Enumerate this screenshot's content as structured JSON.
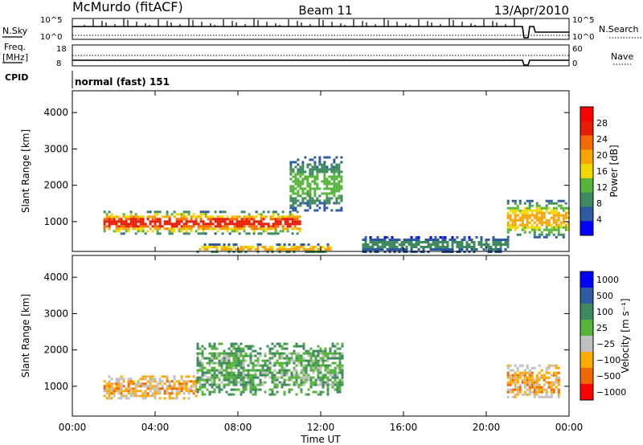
{
  "header": {
    "station": "McMurdo (fitACF)",
    "beam": "Beam 11",
    "date": "13/Apr/2010",
    "nsky_label": "N.Sky",
    "nsearch_label": "N.Search",
    "freq_label_1": "Freq.",
    "freq_label_2": "[MHz]",
    "nave_label": "Nave",
    "cpid_label": "CPID",
    "cpid_value": "normal (fast) 151",
    "nsky_ticks": [
      "10^5",
      "10^0"
    ],
    "nsearch_ticks": [
      "10^5",
      "10^0"
    ],
    "freq_ticks": [
      "18",
      "8"
    ],
    "nave_ticks": [
      "60",
      "0"
    ]
  },
  "colors": {
    "power": [
      "#0000ff",
      "#2d5aa0",
      "#3e8a5e",
      "#55b53a",
      "#f0d800",
      "#f7a300",
      "#f26a00",
      "#e81a00",
      "#ff0000"
    ],
    "velocity": [
      "#ff0000",
      "#ee6a00",
      "#ffaa00",
      "#c0c0c0",
      "#55b53a",
      "#3e8a5e",
      "#2d5aa0",
      "#0000ff"
    ]
  },
  "chart_data": [
    {
      "type": "heatmap",
      "name": "Power",
      "ylabel": "Slant Range [km]",
      "ylim": [
        180,
        4600
      ],
      "xlim": [
        0,
        24
      ],
      "y_ticks": [
        "1000",
        "2000",
        "3000",
        "4000"
      ],
      "colorbar": {
        "label": "Power [dB]",
        "range": [
          0,
          32
        ],
        "ticks": [
          "4",
          "8",
          "12",
          "16",
          "20",
          "24",
          "28"
        ]
      },
      "echo_regions": [
        {
          "t": [
            1.5,
            11.0
          ],
          "range_km": [
            700,
            1300
          ],
          "value_db": 28
        },
        {
          "t": [
            10.5,
            13.0
          ],
          "range_km": [
            1300,
            2800
          ],
          "value_db": 12
        },
        {
          "t": [
            6.0,
            12.5
          ],
          "range_km": [
            180,
            400
          ],
          "value_db": 20
        },
        {
          "t": [
            21.0,
            24.0
          ],
          "range_km": [
            600,
            1600
          ],
          "value_db": 20
        },
        {
          "t": [
            14.0,
            21.0
          ],
          "range_km": [
            180,
            600
          ],
          "value_db": 8
        }
      ]
    },
    {
      "type": "heatmap",
      "name": "Velocity",
      "ylabel": "Slant Range [km]",
      "xlabel": "Time UT",
      "ylim": [
        180,
        4600
      ],
      "xlim": [
        0,
        24
      ],
      "y_ticks": [
        "1000",
        "2000",
        "3000",
        "4000"
      ],
      "x_ticks": [
        "00:00",
        "04:00",
        "08:00",
        "12:00",
        "16:00",
        "20:00",
        "00:00"
      ],
      "colorbar": {
        "label": "Velocity [m s⁻¹]",
        "ticks": [
          "1000",
          "500",
          "100",
          "25",
          "−25",
          "−100",
          "−500",
          "−1000"
        ]
      },
      "echo_regions": [
        {
          "t": [
            1.5,
            6.0
          ],
          "range_km": [
            700,
            1300
          ],
          "value_ms": -100
        },
        {
          "t": [
            6.0,
            13.0
          ],
          "range_km": [
            800,
            2200
          ],
          "value_ms": 100
        },
        {
          "t": [
            21.0,
            23.5
          ],
          "range_km": [
            700,
            1600
          ],
          "value_ms": -100
        }
      ]
    }
  ]
}
